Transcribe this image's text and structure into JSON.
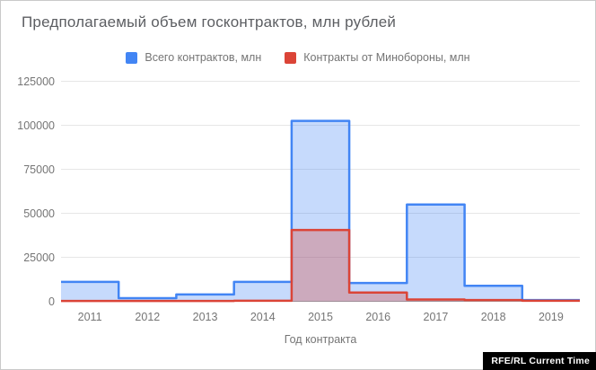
{
  "title": "Предполагаемый объем госконтрактов, млн рублей",
  "legend": [
    {
      "label": "Всего контрактов, млн",
      "color": "#4285f4"
    },
    {
      "label": "Контракты от Минобороны, млн",
      "color": "#db4437"
    }
  ],
  "watermark": "RFE/RL Current Time",
  "chart_data": {
    "type": "area",
    "subtype": "step-area",
    "title": "Предполагаемый объем госконтрактов, млн рублей",
    "xlabel": "Год контракта",
    "ylabel": "",
    "ylim": [
      0,
      125000
    ],
    "yticks": [
      0,
      25000,
      50000,
      75000,
      100000,
      125000
    ],
    "grid": true,
    "legend_position": "top",
    "categories": [
      "2011",
      "2012",
      "2013",
      "2014",
      "2015",
      "2016",
      "2017",
      "2018",
      "2019"
    ],
    "series": [
      {
        "name": "Всего контрактов, млн",
        "color": "#4285f4",
        "fill": "rgba(66,133,244,0.30)",
        "values": [
          11000,
          1800,
          3900,
          11000,
          102500,
          10400,
          55000,
          8800,
          700
        ]
      },
      {
        "name": "Контракты от Минобороны, млн",
        "color": "#db4437",
        "fill": "rgba(219,68,55,0.32)",
        "values": [
          200,
          200,
          200,
          300,
          40500,
          5000,
          1000,
          700,
          300
        ]
      }
    ],
    "axis_color": "#9e9e9e",
    "gridline_color": "#e6e6e6",
    "tick_label_color": "#757575"
  }
}
